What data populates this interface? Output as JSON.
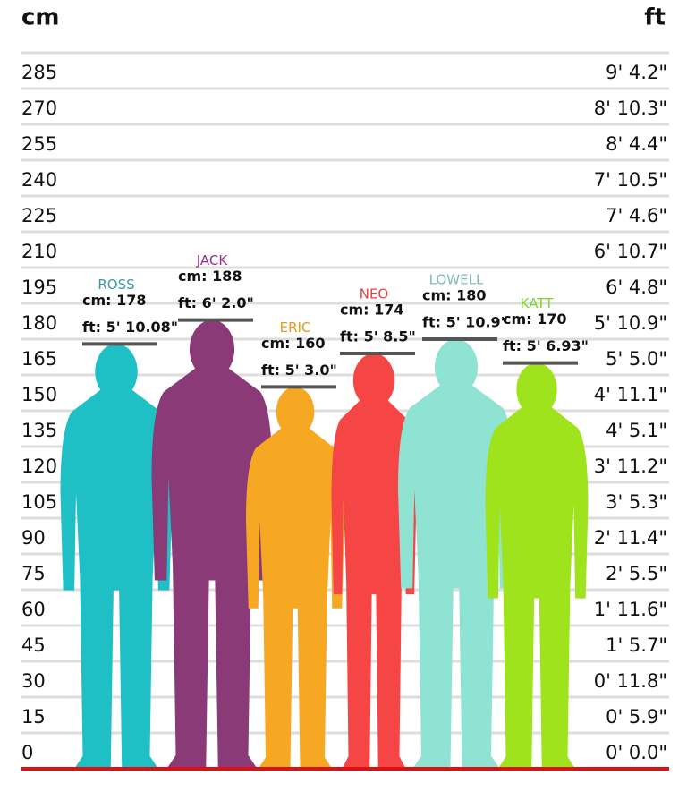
{
  "chart_data": {
    "type": "height-comparison",
    "ylabel": "cm",
    "y2label": "ft",
    "ylim": [
      0,
      300
    ],
    "yticks": [
      0,
      15,
      30,
      45,
      60,
      75,
      90,
      105,
      120,
      135,
      150,
      165,
      180,
      195,
      210,
      225,
      240,
      255,
      270,
      285
    ],
    "y2lim": [
      0,
      300
    ],
    "y2ticks": [
      {
        "value": 0,
        "label": "0' 0.0\""
      },
      {
        "value": 15,
        "label": "0' 5.9\""
      },
      {
        "value": 30,
        "label": "0' 11.8\""
      },
      {
        "value": 45,
        "label": "1' 5.7\""
      },
      {
        "value": 60,
        "label": "1' 11.6\""
      },
      {
        "value": 75,
        "label": "2' 5.5\""
      },
      {
        "value": 90,
        "label": "2' 11.4\""
      },
      {
        "value": 105,
        "label": "3' 5.3\""
      },
      {
        "value": 120,
        "label": "3' 11.2\""
      },
      {
        "value": 135,
        "label": "4' 5.1\""
      },
      {
        "value": 150,
        "label": "4' 11.1\""
      },
      {
        "value": 165,
        "label": "5' 5.0\""
      },
      {
        "value": 180,
        "label": "5' 10.9\""
      },
      {
        "value": 195,
        "label": "6' 4.8\""
      },
      {
        "value": 210,
        "label": "6' 10.7\""
      },
      {
        "value": 225,
        "label": "7' 4.6\""
      },
      {
        "value": 240,
        "label": "7' 10.5\""
      },
      {
        "value": 255,
        "label": "8' 4.4\""
      },
      {
        "value": 270,
        "label": "8' 10.3\""
      },
      {
        "value": 285,
        "label": "9' 4.2\""
      }
    ],
    "grid": true,
    "series": [
      {
        "name": "ROSS",
        "color": "#1fbfc6",
        "name_color": "#3a9aa0",
        "values": [
          178
        ],
        "value_labels": [
          "cm: 178"
        ],
        "ft_labels": [
          "ft: 5' 10.08\""
        ]
      },
      {
        "name": "JACK",
        "color": "#8b3a78",
        "name_color": "#9b2d8e",
        "values": [
          188
        ],
        "value_labels": [
          "cm: 188"
        ],
        "ft_labels": [
          "ft: 6' 2.0\""
        ]
      },
      {
        "name": "ERIC",
        "color": "#f7a823",
        "name_color": "#e59a1a",
        "values": [
          160
        ],
        "value_labels": [
          "cm: 160"
        ],
        "ft_labels": [
          "ft: 5' 3.0\""
        ]
      },
      {
        "name": "NEO",
        "color": "#f64545",
        "name_color": "#e84040",
        "values": [
          174
        ],
        "value_labels": [
          "cm: 174"
        ],
        "ft_labels": [
          "ft: 5' 8.5\""
        ]
      },
      {
        "name": "LOWELL",
        "color": "#8fe3d3",
        "name_color": "#7fbcb4",
        "values": [
          180
        ],
        "value_labels": [
          "cm: 180"
        ],
        "ft_labels": [
          "ft: 5' 10.9\""
        ]
      },
      {
        "name": "KATT",
        "color": "#9ee31c",
        "name_color": "#7fd62a",
        "values": [
          170
        ],
        "value_labels": [
          "cm: 170"
        ],
        "ft_labels": [
          "ft: 5' 6.93\""
        ]
      }
    ]
  }
}
